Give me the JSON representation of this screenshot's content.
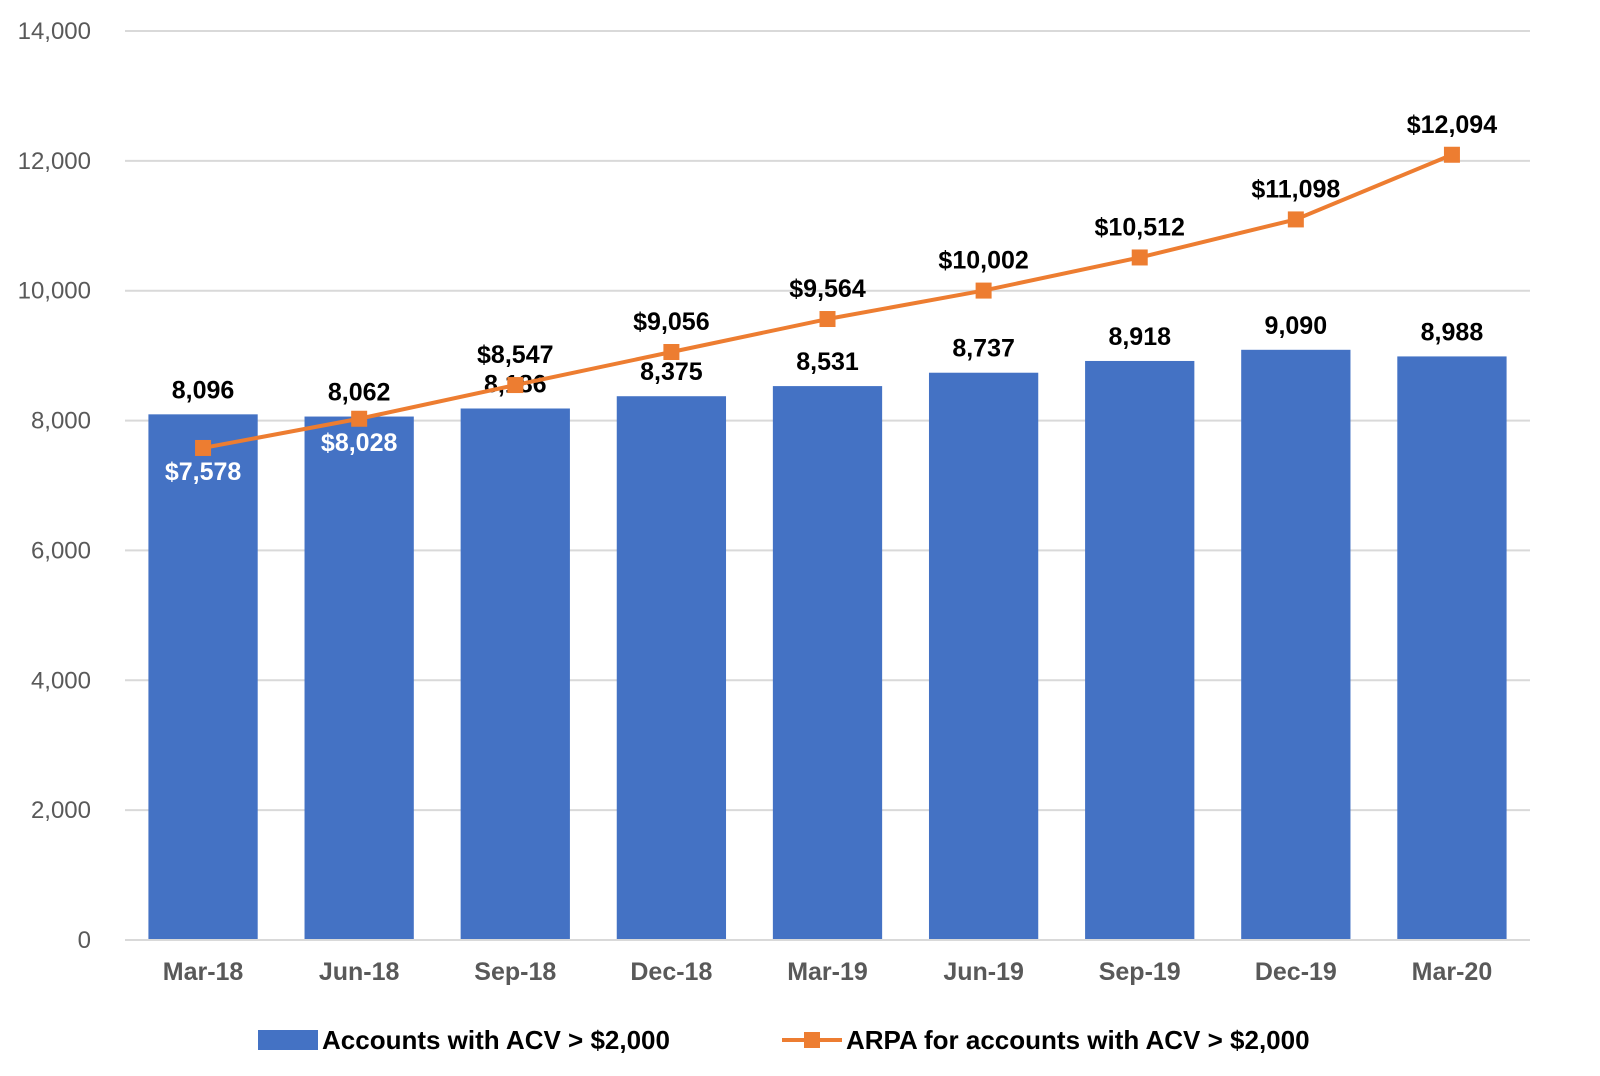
{
  "chart_data": {
    "type": "bar",
    "categories": [
      "Mar-18",
      "Jun-18",
      "Sep-18",
      "Dec-18",
      "Mar-19",
      "Jun-19",
      "Sep-19",
      "Dec-19",
      "Mar-20"
    ],
    "series": [
      {
        "name": "Accounts with ACV > $2,000",
        "type": "bar",
        "color": "#4472C4",
        "values": [
          8096,
          8062,
          8186,
          8375,
          8531,
          8737,
          8918,
          9090,
          8988
        ],
        "labels": [
          "8,096",
          "8,062",
          "8,186",
          "8,375",
          "8,531",
          "8,737",
          "8,918",
          "9,090",
          "8,988"
        ]
      },
      {
        "name": "ARPA for accounts with ACV > $2,000",
        "type": "line",
        "marker": "square",
        "color": "#ED7D31",
        "values": [
          7578,
          8028,
          8547,
          9056,
          9564,
          10002,
          10512,
          11098,
          12094
        ],
        "labels": [
          "$7,578",
          "$8,028",
          "$8,547",
          "$9,056",
          "$9,564",
          "$10,002",
          "$10,512",
          "$11,098",
          "$12,094"
        ],
        "label_colors": [
          "#ffffff",
          "#ffffff",
          "#000000",
          "#000000",
          "#000000",
          "#000000",
          "#000000",
          "#000000",
          "#000000"
        ]
      }
    ],
    "title": "",
    "xlabel": "",
    "ylabel": "",
    "ylim": [
      0,
      14000
    ],
    "yticks": [
      0,
      2000,
      4000,
      6000,
      8000,
      10000,
      12000,
      14000
    ],
    "ytick_labels": [
      "0",
      "2,000",
      "4,000",
      "6,000",
      "8,000",
      "10,000",
      "12,000",
      "14,000"
    ],
    "grid": true,
    "gridline_color": "#D9D9D9",
    "legend_position": "bottom"
  }
}
